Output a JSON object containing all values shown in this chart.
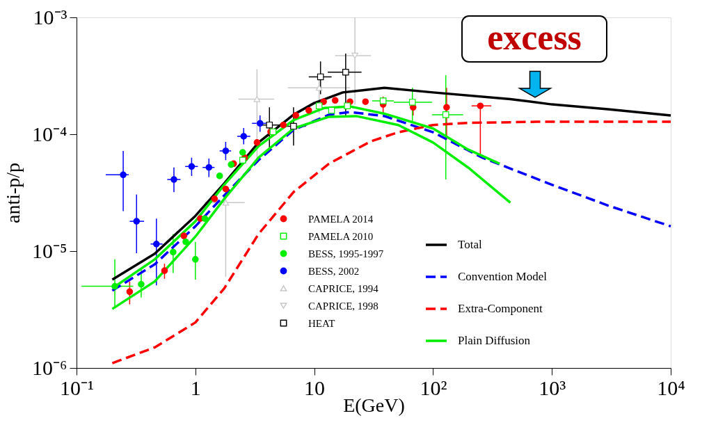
{
  "chart_data": {
    "type": "line",
    "xlabel": "E(GeV)",
    "ylabel": "anti-p/p",
    "log": "xy",
    "grid": false,
    "legend": "bottom",
    "xlim": [
      0.1,
      10000
    ],
    "ylim": [
      1e-06,
      0.001
    ],
    "xticks": [
      {
        "value": 0.1,
        "label": "10⁻¹"
      },
      1,
      10,
      {
        "value": 100,
        "label": "10²"
      },
      {
        "value": 1000,
        "label": "10³"
      },
      {
        "value": 10000,
        "label": "10⁴"
      }
    ],
    "yticks": [
      {
        "value": 1e-06,
        "label": "10⁻⁶"
      },
      {
        "value": 1e-05,
        "label": "10⁻⁵"
      },
      {
        "value": 0.0001,
        "label": "10⁻⁴"
      },
      {
        "value": 0.001,
        "label": "10⁻³"
      }
    ],
    "annotations": [
      "excess"
    ],
    "series": [
      {
        "name": "PAMELA 2014",
        "type": "scatter",
        "marker": "circle",
        "color": "#ff0000",
        "x": [
          0.28,
          0.55,
          0.8,
          1.1,
          1.45,
          1.8,
          2.1,
          2.6,
          3.3,
          4.3,
          5.5,
          7,
          9,
          12,
          15,
          20,
          27,
          38,
          68,
          130,
          250
        ],
        "values": [
          4.5e-06,
          6.8e-06,
          1.35e-05,
          1.9e-05,
          2.8e-05,
          3.4e-05,
          5.6e-05,
          6.3e-05,
          8.5e-05,
          0.000105,
          0.00012,
          0.000145,
          0.00016,
          0.00019,
          0.000195,
          0.00019,
          0.00019,
          0.00018,
          0.00017,
          0.00017,
          0.000175
        ],
        "errors": [
          [
            3.5e-06,
            5.5e-06
          ],
          [
            5.8e-06,
            7.8e-06
          ],
          null,
          null,
          null,
          null,
          null,
          null,
          null,
          null,
          null,
          null,
          null,
          null,
          null,
          null,
          null,
          [
            0.00015,
            0.00021
          ],
          [
            0.000145,
            0.0002
          ],
          [
            9e-05,
            0.00025
          ],
          [
            6.6e-05,
            0.00018
          ]
        ],
        "xerrors": [
          null,
          null,
          null,
          null,
          null,
          null,
          null,
          null,
          null,
          null,
          null,
          null,
          null,
          null,
          null,
          null,
          null,
          null,
          null,
          null,
          [
            211,
            309
          ]
        ]
      },
      {
        "name": "PAMELA 2010",
        "type": "scatter",
        "marker": "square",
        "color": "#00ee00",
        "x": [
          2.5,
          4.5,
          11,
          14,
          19,
          38,
          67,
          128
        ],
        "values": [
          6e-05,
          0.000105,
          0.000175,
          0.00016,
          0.000175,
          0.000193,
          0.000188,
          0.000147
        ],
        "errors": [
          null,
          null,
          null,
          null,
          null,
          null,
          [
            0.00013,
            0.00025
          ],
          [
            4.1e-05,
            0.00032
          ]
        ],
        "xerrors": [
          null,
          null,
          null,
          null,
          null,
          [
            30.7,
            46.7
          ],
          [
            46.7,
            98
          ],
          [
            98,
            179
          ]
        ]
      },
      {
        "name": "BESS, 1995-1997",
        "type": "scatter",
        "marker": "circle",
        "color": "#00ee00",
        "x": [
          0.21,
          0.35,
          0.65,
          0.83,
          1.0,
          1.2,
          1.6,
          2.0,
          2.5
        ],
        "values": [
          5e-06,
          5.2e-06,
          9.8e-06,
          1.2e-05,
          8.5e-06,
          1.9e-05,
          4.4e-05,
          5.5e-05,
          7e-05
        ],
        "errors": [
          [
            3.3e-06,
            8.5e-06
          ],
          [
            4e-06,
            7e-06
          ],
          [
            6.5e-06,
            1.4e-05
          ],
          null,
          [
            5.7e-06,
            1.2e-05
          ],
          null,
          null,
          null,
          null
        ],
        "xerrors": [
          [
            0.11,
            0.3
          ],
          null,
          null,
          null,
          null,
          null,
          null,
          null,
          null
        ]
      },
      {
        "name": "BESS, 2002",
        "type": "scatter",
        "marker": "circle",
        "color": "#0000ff",
        "x": [
          0.247,
          0.32,
          0.47,
          0.66,
          0.93,
          1.3,
          1.8,
          2.55,
          3.5
        ],
        "values": [
          4.5e-05,
          1.8e-05,
          1.15e-05,
          4.1e-05,
          5.3e-05,
          5.2e-05,
          7.2e-05,
          9.6e-05,
          0.000124
        ],
        "errors": [
          [
            2.2e-05,
            7.2e-05
          ],
          [
            9.6e-06,
            3.05e-05
          ],
          [
            5.1e-06,
            1.9e-05
          ],
          [
            3.2e-05,
            5.2e-05
          ],
          [
            4.4e-05,
            6.3e-05
          ],
          [
            4.3e-05,
            6.2e-05
          ],
          [
            6e-05,
            8.6e-05
          ],
          [
            8.2e-05,
            0.000113
          ],
          [
            0.000105,
            0.000145
          ]
        ],
        "xerrors": [
          [
            0.176,
            0.275
          ],
          [
            0.28,
            0.37
          ],
          [
            0.42,
            0.53
          ],
          [
            0.58,
            0.75
          ],
          [
            0.82,
            1.05
          ],
          [
            1.15,
            1.45
          ],
          [
            1.6,
            2.0
          ],
          [
            2.25,
            2.9
          ],
          [
            3.0,
            4.1
          ]
        ]
      },
      {
        "name": "CAPRICE, 1994",
        "type": "scatter",
        "marker": "triangle",
        "color": "#c8c8c8",
        "x": [
          1.8,
          3.3,
          11
        ],
        "values": [
          2.6e-05,
          0.0002,
          0.00025
        ],
        "errors": [
          [
            6e-06,
            3.5e-05
          ],
          [
            6e-05,
            0.00036
          ],
          [
            0.00015,
            0.00032
          ]
        ],
        "xerrors": [
          [
            1.2,
            2.6
          ],
          [
            2.3,
            4.6
          ],
          [
            6,
            20
          ]
        ]
      },
      {
        "name": "CAPRICE, 1998",
        "type": "scatter",
        "marker": "triangle-down",
        "color": "#c8c8c8",
        "x": [
          22
        ],
        "values": [
          0.00047
        ],
        "errors": [
          [
            0.00018,
            0.001
          ]
        ],
        "xerrors": [
          [
            15,
            30
          ]
        ]
      },
      {
        "name": "HEAT",
        "type": "scatter",
        "marker": "square",
        "color": "#000000",
        "x": [
          4.2,
          6.7,
          11.3,
          18.4
        ],
        "values": [
          0.00012,
          0.000117,
          0.00031,
          0.00034
        ],
        "errors": [
          [
            7.4e-05,
            0.00017
          ],
          [
            8e-05,
            0.00017
          ],
          [
            0.00022,
            0.00042
          ],
          [
            0.00014,
            0.00049
          ]
        ],
        "xerrors": [
          [
            3.4,
            5.2
          ],
          [
            5.5,
            8.5
          ],
          [
            9,
            14
          ],
          [
            13,
            25
          ]
        ]
      },
      {
        "name": "Total",
        "line_style": "solid",
        "color": "#000000",
        "x": [
          0.2,
          0.455,
          1,
          1.75,
          3.4,
          6.7,
          10,
          17.4,
          39,
          100,
          447,
          1000,
          2950,
          10000
        ],
        "values": [
          5.7e-06,
          9.5e-06,
          2e-05,
          3.8e-05,
          8.5e-05,
          0.000147,
          0.000185,
          0.000228,
          0.00025,
          0.000228,
          0.0002,
          0.00018,
          0.000164,
          0.000145
        ]
      },
      {
        "name": "Convention Model",
        "line_style": "dashed",
        "color": "#0000ff",
        "x": [
          0.2,
          0.455,
          1,
          1.75,
          3.4,
          6.7,
          13.3,
          20,
          39,
          100,
          260,
          1000,
          2950,
          10000
        ],
        "values": [
          4.6e-06,
          7.7e-06,
          1.63e-05,
          3e-05,
          6e-05,
          0.000109,
          0.000147,
          0.000155,
          0.000143,
          0.000104,
          6.3e-05,
          3.7e-05,
          2.46e-05,
          1.63e-05
        ]
      },
      {
        "name": "Extra-Component",
        "line_style": "dashed",
        "color": "#ff0000",
        "x": [
          0.2,
          0.455,
          1,
          1.75,
          3.4,
          6.7,
          13.3,
          30,
          51,
          100,
          197,
          750,
          10000
        ],
        "values": [
          1.1e-06,
          1.5e-06,
          2.45e-06,
          4.8e-06,
          1.4e-05,
          3.2e-05,
          5.6e-05,
          8.7e-05,
          0.000104,
          0.00012,
          0.000125,
          0.000128,
          0.000128
        ]
      },
      {
        "name": "Plain Diffusion",
        "line_style": "solid",
        "color": "#00ee00",
        "x": [
          0.2,
          0.455,
          1,
          1.75,
          3.4,
          6.7,
          12.2,
          20,
          39,
          100,
          197,
          363
        ],
        "values": [
          4.8e-06,
          8.5e-06,
          1.8e-05,
          3.7e-05,
          7.9e-05,
          0.000132,
          0.000168,
          0.000173,
          0.00015,
          0.000112,
          7.4e-05,
          5.6e-05
        ]
      },
      {
        "line_style": "solid",
        "color": "#00ee00",
        "x": [
          0.2,
          0.455,
          1,
          1.75,
          3.4,
          6.7,
          13.3,
          22.6,
          51,
          100,
          197,
          447
        ],
        "values": [
          3.2e-06,
          5.5e-06,
          1.33e-05,
          2.8e-05,
          6.3e-05,
          0.000112,
          0.000141,
          0.000143,
          0.00012,
          8.5e-05,
          5.2e-05,
          2.6e-05
        ]
      }
    ]
  }
}
